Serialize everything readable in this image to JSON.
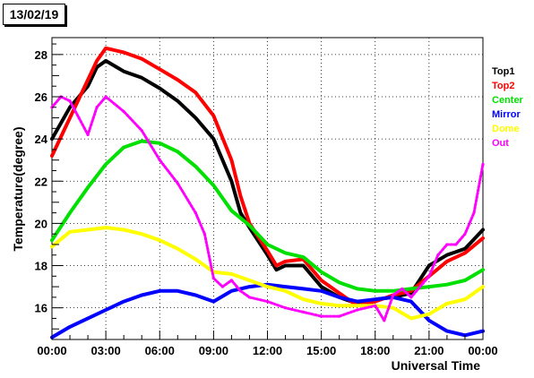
{
  "header": {
    "date": "13/02/19"
  },
  "colors": {
    "Top1": "#000000",
    "Top2": "#ff0000",
    "Center": "#00e000",
    "Mirror": "#0000ff",
    "Dome": "#ffff00",
    "Out": "#ff00ff"
  },
  "chart_data": {
    "type": "scatter",
    "title": "",
    "xlabel": "Universal Time",
    "ylabel": "Temperature(degree)",
    "xlim": [
      0,
      24
    ],
    "ylim": [
      14.5,
      28.8
    ],
    "grid": true,
    "legend_placement": "right",
    "x_ticks": [
      {
        "value": 0,
        "label": "00:00"
      },
      {
        "value": 3,
        "label": "03:00"
      },
      {
        "value": 6,
        "label": "06:00"
      },
      {
        "value": 9,
        "label": "09:00"
      },
      {
        "value": 12,
        "label": "12:00"
      },
      {
        "value": 15,
        "label": "15:00"
      },
      {
        "value": 18,
        "label": "18:00"
      },
      {
        "value": 21,
        "label": "21:00"
      },
      {
        "value": 24,
        "label": "00:00"
      }
    ],
    "y_ticks": [
      {
        "value": 16,
        "label": "16"
      },
      {
        "value": 18,
        "label": "18"
      },
      {
        "value": 20,
        "label": "20"
      },
      {
        "value": 22,
        "label": "22"
      },
      {
        "value": 24,
        "label": "24"
      },
      {
        "value": 26,
        "label": "26"
      },
      {
        "value": 28,
        "label": "28"
      }
    ],
    "series": [
      {
        "name": "Top1",
        "x": [
          0,
          1,
          2,
          2.5,
          3,
          4,
          5,
          6,
          7,
          8,
          9,
          10,
          10.5,
          11,
          12,
          12.5,
          13,
          14,
          15,
          16,
          17,
          18,
          19,
          20,
          21,
          22,
          23,
          24
        ],
        "y": [
          24,
          25.5,
          26.5,
          27.4,
          27.7,
          27.2,
          26.9,
          26.4,
          25.8,
          25,
          24,
          22,
          20.5,
          19.8,
          18.5,
          17.8,
          18,
          18,
          17,
          16.5,
          16.2,
          16.4,
          16.5,
          16.7,
          18,
          18.5,
          18.8,
          19.7
        ]
      },
      {
        "name": "Top2",
        "x": [
          0,
          1,
          2,
          2.5,
          3,
          4,
          5,
          6,
          7,
          8,
          9,
          10,
          10.5,
          11,
          12,
          12.5,
          13,
          14,
          15,
          16,
          17,
          18,
          19,
          20,
          21,
          22,
          23,
          24
        ],
        "y": [
          23.2,
          25,
          26.8,
          27.7,
          28.3,
          28.1,
          27.8,
          27.3,
          26.8,
          26.2,
          25.1,
          23,
          21.3,
          20,
          18.7,
          18,
          18.2,
          18.3,
          17.3,
          16.7,
          16.1,
          16.3,
          16.6,
          16.8,
          17.5,
          18.2,
          18.6,
          19.3
        ]
      },
      {
        "name": "Center",
        "x": [
          0,
          1,
          2,
          3,
          4,
          5,
          6,
          7,
          8,
          9,
          10,
          11,
          12,
          13,
          14,
          15,
          16,
          17,
          18,
          19,
          20,
          21,
          22,
          23,
          24
        ],
        "y": [
          19.2,
          20.5,
          21.7,
          22.8,
          23.6,
          23.9,
          23.8,
          23.4,
          22.7,
          21.8,
          20.6,
          19.9,
          19,
          18.6,
          18.4,
          17.7,
          17.2,
          16.9,
          16.8,
          16.8,
          16.9,
          17,
          17.1,
          17.3,
          17.8
        ]
      },
      {
        "name": "Mirror",
        "x": [
          0,
          1,
          2,
          3,
          4,
          5,
          6,
          7,
          8,
          9,
          10,
          11,
          12,
          13,
          14,
          15,
          16,
          17,
          18,
          19,
          20,
          21,
          22,
          23,
          24
        ],
        "y": [
          14.6,
          15.1,
          15.5,
          15.9,
          16.3,
          16.6,
          16.8,
          16.8,
          16.6,
          16.3,
          16.8,
          17,
          17.1,
          17,
          16.9,
          16.8,
          16.5,
          16.3,
          16.4,
          16.5,
          16.3,
          15.4,
          14.9,
          14.7,
          14.9
        ]
      },
      {
        "name": "Dome",
        "x": [
          0,
          1,
          2,
          3,
          4,
          5,
          6,
          7,
          8,
          9,
          10,
          11,
          12,
          13,
          14,
          15,
          16,
          17,
          18,
          19,
          20,
          21,
          22,
          23,
          24
        ],
        "y": [
          18.9,
          19.6,
          19.7,
          19.8,
          19.7,
          19.5,
          19.2,
          18.8,
          18.3,
          17.7,
          17.6,
          17.3,
          17,
          16.8,
          16.4,
          16.2,
          16.1,
          16.1,
          16.1,
          16,
          15.5,
          15.7,
          16.2,
          16.4,
          17
        ]
      },
      {
        "name": "Out",
        "x": [
          0,
          0.5,
          1,
          1.5,
          2,
          2.5,
          3,
          4,
          5,
          6,
          7,
          8,
          8.5,
          9,
          9.5,
          10,
          10.5,
          11,
          12,
          13,
          14,
          15,
          16,
          17,
          18,
          18.5,
          19,
          19.5,
          20,
          21,
          21.5,
          22,
          22.5,
          23,
          23.5,
          24
        ],
        "y": [
          25.5,
          26,
          25.8,
          25,
          24.2,
          25.5,
          26,
          25.3,
          24.4,
          23,
          21.9,
          20.5,
          19.5,
          17.4,
          17,
          17.3,
          16.8,
          16.5,
          16.3,
          16,
          15.8,
          15.6,
          15.6,
          15.9,
          16.1,
          15.4,
          16.6,
          16.9,
          16.5,
          17.5,
          18.5,
          19,
          19,
          19.5,
          20.5,
          22.8
        ]
      }
    ]
  }
}
